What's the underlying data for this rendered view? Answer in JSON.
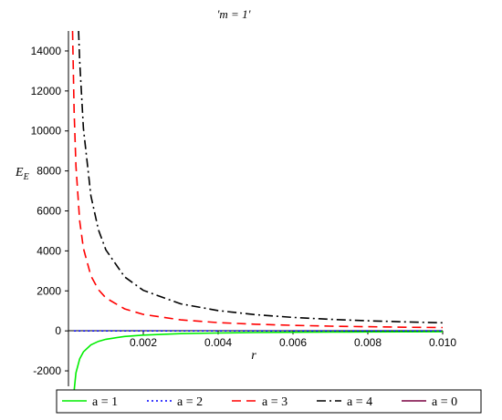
{
  "chart_data": {
    "type": "line",
    "title": "'m = 1'",
    "xlabel": "r",
    "ylabel_main": "E",
    "ylabel_sub": "E",
    "xlim": [
      0,
      0.01
    ],
    "ylim": [
      -3000,
      15000
    ],
    "x_ticks": [
      0.002,
      0.004,
      0.006,
      0.008,
      0.01
    ],
    "x_tick_labels": [
      "0.002",
      "0.004",
      "0.006",
      "0.008",
      "0.010"
    ],
    "y_ticks": [
      -2000,
      0,
      2000,
      4000,
      6000,
      8000,
      10000,
      12000,
      14000
    ],
    "y_tick_labels": [
      "-2000",
      "0",
      "2000",
      "4000",
      "6000",
      "8000",
      "10000",
      "12000",
      "14000"
    ],
    "legend_position": "bottom",
    "series": [
      {
        "name": "a = 1",
        "color": "#00ee00",
        "dash": "solid",
        "x": [
          0.00015,
          0.0002,
          0.0003,
          0.0004,
          0.0006,
          0.0008,
          0.001,
          0.0015,
          0.002,
          0.003,
          0.004,
          0.005,
          0.006,
          0.007,
          0.008,
          0.009,
          0.01
        ],
        "y": [
          -3000,
          -2100,
          -1400,
          -1050,
          -700,
          -525,
          -420,
          -280,
          -210,
          -140,
          -105,
          -84,
          -70,
          -60,
          -52,
          -47,
          -42
        ]
      },
      {
        "name": "a = 2",
        "color": "#0000ff",
        "dash": "dotted",
        "x": [
          0.00015,
          0.01
        ],
        "y": [
          0,
          0
        ]
      },
      {
        "name": "a = 3",
        "color": "#ff0000",
        "dash": "dashed",
        "x": [
          0.00011,
          0.00015,
          0.0002,
          0.0003,
          0.0004,
          0.0006,
          0.0008,
          0.001,
          0.0015,
          0.002,
          0.003,
          0.004,
          0.005,
          0.006,
          0.007,
          0.008,
          0.009,
          0.01
        ],
        "y": [
          15000,
          11000,
          8250,
          5500,
          4125,
          2750,
          2063,
          1650,
          1100,
          825,
          550,
          413,
          330,
          275,
          236,
          206,
          183,
          165
        ]
      },
      {
        "name": "a = 4",
        "color": "#000000",
        "dash": "dashdot",
        "x": [
          0.00027,
          0.0003,
          0.0004,
          0.0006,
          0.0008,
          0.001,
          0.0015,
          0.002,
          0.003,
          0.004,
          0.005,
          0.006,
          0.007,
          0.008,
          0.009,
          0.01
        ],
        "y": [
          15000,
          13500,
          10125,
          6750,
          5063,
          4050,
          2700,
          2025,
          1350,
          1013,
          810,
          675,
          579,
          506,
          450,
          405
        ]
      },
      {
        "name": "a = 0",
        "color": "#7a0040",
        "dash": "solid",
        "x": [],
        "y": []
      }
    ]
  }
}
